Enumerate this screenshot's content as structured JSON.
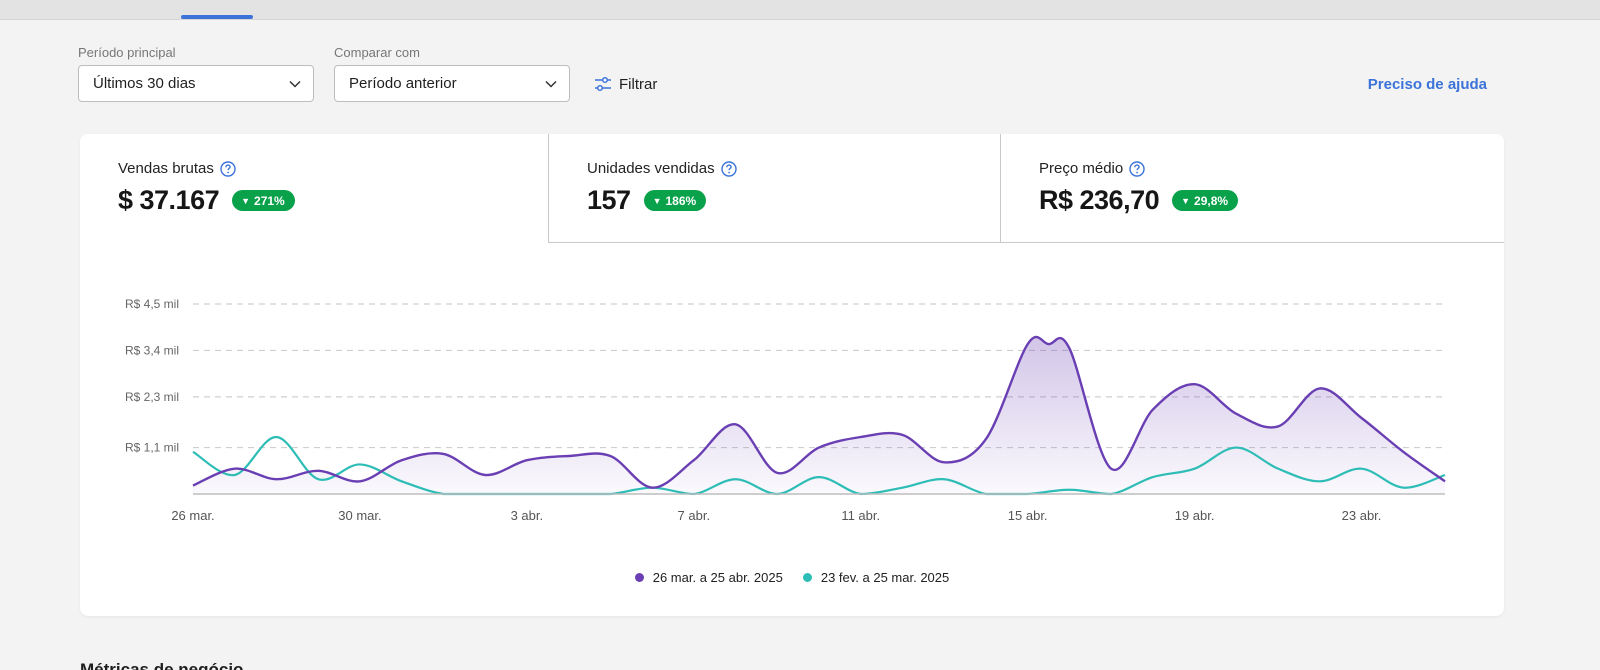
{
  "filters": {
    "primary_label": "Período principal",
    "primary_value": "Últimos 30 dias",
    "compare_label": "Comparar com",
    "compare_value": "Período anterior",
    "filter_label": "Filtrar",
    "help_label": "Preciso de ajuda"
  },
  "kpis": [
    {
      "title": "Vendas brutas",
      "value": "$ 37.167",
      "badge": "271%"
    },
    {
      "title": "Unidades vendidas",
      "value": "157",
      "badge": "186%"
    },
    {
      "title": "Preço médio",
      "value": "R$ 236,70",
      "badge": "29,8%"
    }
  ],
  "colors": {
    "accent": "#3b73d9",
    "badge_green": "#0aa14b",
    "series_current": "#6a3fb3",
    "series_previous": "#2dbdb6"
  },
  "icons": {
    "help": "question-circle-icon",
    "dropdown": "chevron-down-icon",
    "filter": "sliders-icon",
    "trend": "triangle-down-icon"
  },
  "chart_data": {
    "type": "area",
    "y_ticks": [
      "R$ 4,5 mil",
      "R$ 3,4 mil",
      "R$ 2,3 mil",
      "R$ 1,1 mil"
    ],
    "y_tick_values": [
      4.5,
      3.4,
      2.3,
      1.1
    ],
    "ylim": [
      0,
      4.5
    ],
    "x_ticks": [
      "26 mar.",
      "30 mar.",
      "3 abr.",
      "7 abr.",
      "11 abr.",
      "15 abr.",
      "19 abr.",
      "23 abr."
    ],
    "x_tick_days": [
      0,
      4,
      8,
      12,
      16,
      20,
      24,
      28
    ],
    "x_range": [
      0,
      30
    ],
    "grid": true,
    "legend_position": "bottom-center",
    "series": [
      {
        "name": "26 mar. a 25 abr. 2025",
        "color": "#6a3fb3",
        "x": [
          0,
          1,
          2,
          3,
          4,
          5,
          6,
          7,
          8,
          9,
          10,
          11,
          12,
          13,
          14,
          15,
          16,
          17,
          18,
          19,
          20,
          20.5,
          21,
          22,
          23,
          24,
          25,
          26,
          27,
          28,
          29,
          30
        ],
        "y": [
          0.2,
          0.6,
          0.35,
          0.55,
          0.3,
          0.8,
          0.95,
          0.45,
          0.8,
          0.9,
          0.9,
          0.15,
          0.8,
          1.65,
          0.5,
          1.1,
          1.35,
          1.4,
          0.75,
          1.3,
          3.55,
          3.55,
          3.45,
          0.6,
          2.0,
          2.6,
          1.9,
          1.6,
          2.5,
          1.8,
          1.0,
          0.3
        ]
      },
      {
        "name": "23 fev. a 25 mar. 2025",
        "color": "#2dbdb6",
        "x": [
          0,
          1,
          2,
          3,
          4,
          5,
          6,
          7,
          8,
          9,
          10,
          11,
          12,
          13,
          14,
          15,
          16,
          17,
          18,
          19,
          20,
          21,
          22,
          23,
          24,
          25,
          26,
          27,
          28,
          29,
          30
        ],
        "y": [
          1.0,
          0.45,
          1.35,
          0.35,
          0.7,
          0.3,
          0.0,
          0.0,
          0.0,
          0.0,
          0.0,
          0.15,
          0.0,
          0.35,
          0.0,
          0.4,
          0.0,
          0.15,
          0.35,
          0.0,
          0.0,
          0.1,
          0.0,
          0.4,
          0.6,
          1.1,
          0.6,
          0.3,
          0.6,
          0.15,
          0.45
        ]
      }
    ]
  },
  "next_section_title": "Métricas de negócio"
}
